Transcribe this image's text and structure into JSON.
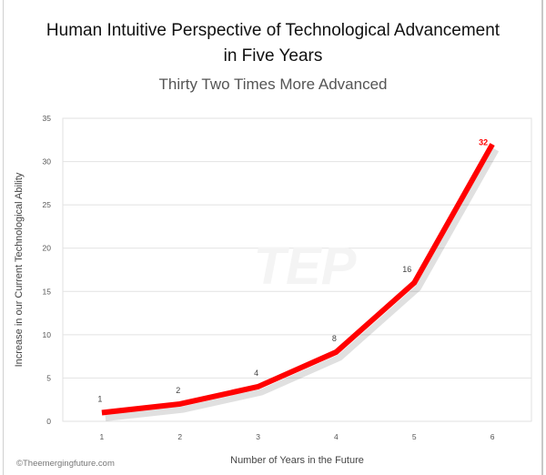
{
  "chart_data": {
    "type": "line",
    "title": "Human Intuitive Perspective of Technological Advancement in Five Years",
    "title_lines": [
      "Human Intuitive Perspective of Technological Advancement",
      "in Five Years"
    ],
    "subtitle": "Thirty Two Times More Advanced",
    "xlabel": "Number of Years in the Future",
    "ylabel": "Increase in our Current Technological Ability",
    "categories": [
      "1",
      "2",
      "3",
      "4",
      "5",
      "6"
    ],
    "values": [
      1,
      2,
      4,
      8,
      16,
      32
    ],
    "data_labels": [
      "1",
      "2",
      "4",
      "8",
      "16",
      "32"
    ],
    "ylim": [
      0,
      35
    ],
    "yticks": [
      "0",
      "5",
      "10",
      "15",
      "20",
      "25",
      "30",
      "35"
    ],
    "grid": true,
    "line_color": "#ff0000",
    "highlight_label_color": "#ff0000"
  },
  "watermark": "TEP",
  "copyright": "©Theemergingfuture.com"
}
